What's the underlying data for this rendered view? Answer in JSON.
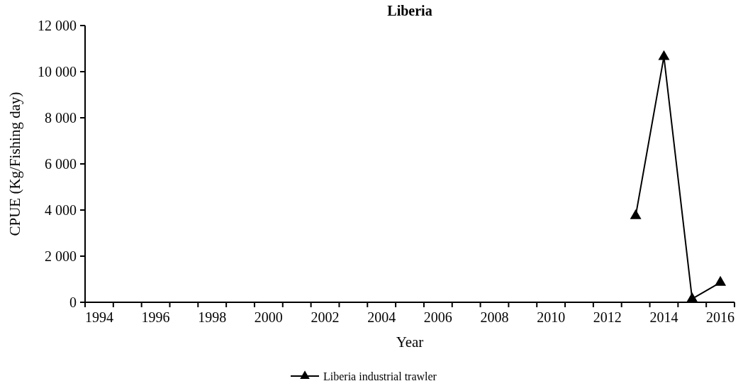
{
  "chart_data": {
    "type": "line",
    "title": "Liberia",
    "xlabel": "Year",
    "ylabel": "CPUE (Kg/Fishing day)",
    "categories": [
      "1994",
      null,
      "1996",
      null,
      "1998",
      null,
      "2000",
      null,
      "2002",
      null,
      "2004",
      null,
      "2006",
      null,
      "2008",
      null,
      "2010",
      null,
      "2012",
      null,
      "2014",
      null,
      "2016"
    ],
    "series": [
      {
        "name": "Liberia industrial trawler",
        "color": "#000000",
        "values": [
          null,
          null,
          null,
          null,
          null,
          null,
          null,
          null,
          null,
          null,
          null,
          null,
          null,
          null,
          null,
          null,
          null,
          null,
          null,
          3750,
          10650,
          150,
          860
        ]
      }
    ],
    "ylim": [
      0,
      12000
    ],
    "yticks": [
      {
        "value": 0,
        "label": "0"
      },
      {
        "value": 2000,
        "label": "2 000"
      },
      {
        "value": 4000,
        "label": "4 000"
      },
      {
        "value": 6000,
        "label": "6 000"
      },
      {
        "value": 8000,
        "label": "8 000"
      },
      {
        "value": 10000,
        "label": "10 000"
      },
      {
        "value": 12000,
        "label": "12 000"
      }
    ],
    "grid": false,
    "legend": "bottom",
    "marker": "triangle",
    "line_style": "solid"
  }
}
